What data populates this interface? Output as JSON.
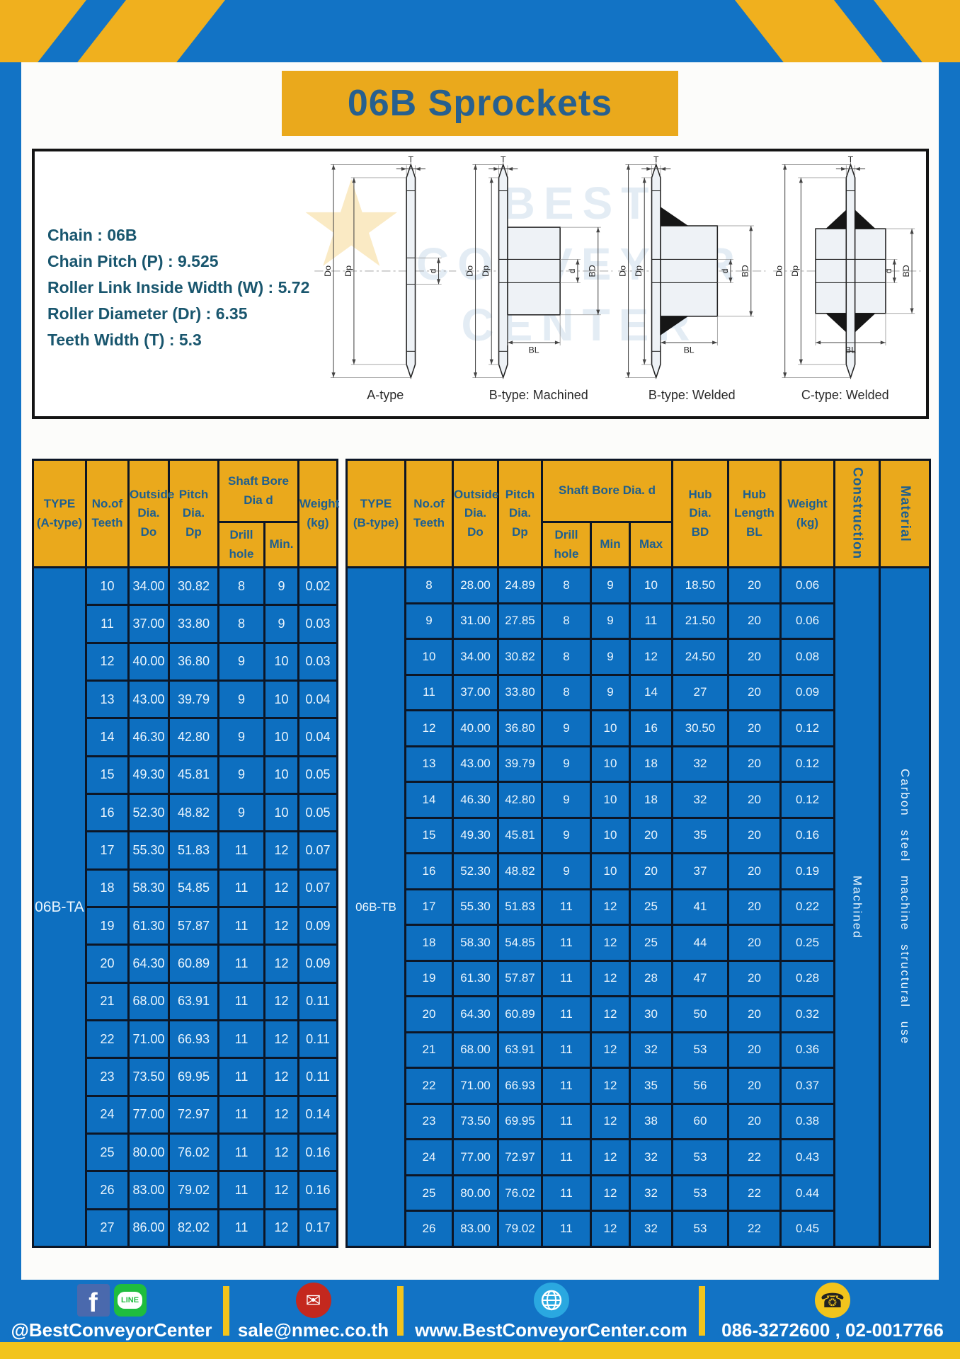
{
  "title": "06B Sprockets",
  "specs": [
    "Chain  :  06B",
    "Chain Pitch (P)  :  9.525",
    "Roller Link Inside Width (W)  :  5.72",
    "Roller Diameter (Dr)  :  6.35",
    "Teeth Width (T)  :  5.3"
  ],
  "diagram": {
    "watermark_lines": [
      "BEST",
      "CONVEYOR",
      "CENTER"
    ],
    "captions": [
      "A-type",
      "B-type: Machined",
      "B-type: Welded",
      "C-type: Welded"
    ],
    "dim_labels": {
      "t": "T",
      "do": "Do",
      "dp": "Dp",
      "d": "d",
      "bd": "BD",
      "bl": "BL"
    }
  },
  "table_a": {
    "header": {
      "type": "TYPE\n(A-type)",
      "teeth": "No.of\nTeeth",
      "outside": "Outside\nDia.\nDo",
      "pitch": "Pitch Dia.\nDp",
      "shaft_bore": "Shaft Bore Dia d",
      "drill": "Drill hole",
      "min": "Min.",
      "weight": "Weight\n(kg)"
    },
    "type_label": "06B-TA",
    "rows": [
      [
        "10",
        "34.00",
        "30.82",
        "8",
        "9",
        "0.02"
      ],
      [
        "11",
        "37.00",
        "33.80",
        "8",
        "9",
        "0.03"
      ],
      [
        "12",
        "40.00",
        "36.80",
        "9",
        "10",
        "0.03"
      ],
      [
        "13",
        "43.00",
        "39.79",
        "9",
        "10",
        "0.04"
      ],
      [
        "14",
        "46.30",
        "42.80",
        "9",
        "10",
        "0.04"
      ],
      [
        "15",
        "49.30",
        "45.81",
        "9",
        "10",
        "0.05"
      ],
      [
        "16",
        "52.30",
        "48.82",
        "9",
        "10",
        "0.05"
      ],
      [
        "17",
        "55.30",
        "51.83",
        "11",
        "12",
        "0.07"
      ],
      [
        "18",
        "58.30",
        "54.85",
        "11",
        "12",
        "0.07"
      ],
      [
        "19",
        "61.30",
        "57.87",
        "11",
        "12",
        "0.09"
      ],
      [
        "20",
        "64.30",
        "60.89",
        "11",
        "12",
        "0.09"
      ],
      [
        "21",
        "68.00",
        "63.91",
        "11",
        "12",
        "0.11"
      ],
      [
        "22",
        "71.00",
        "66.93",
        "11",
        "12",
        "0.11"
      ],
      [
        "23",
        "73.50",
        "69.95",
        "11",
        "12",
        "0.11"
      ],
      [
        "24",
        "77.00",
        "72.97",
        "11",
        "12",
        "0.14"
      ],
      [
        "25",
        "80.00",
        "76.02",
        "11",
        "12",
        "0.16"
      ],
      [
        "26",
        "83.00",
        "79.02",
        "11",
        "12",
        "0.16"
      ],
      [
        "27",
        "86.00",
        "82.02",
        "11",
        "12",
        "0.17"
      ]
    ]
  },
  "table_b": {
    "header": {
      "type": "TYPE\n(B-type)",
      "teeth": "No.of\nTeeth",
      "outside": "Outside\nDia.\nDo",
      "pitch": "Pitch\nDia.\nDp",
      "shaft_bore": "Shaft Bore Dia.  d",
      "drill": "Drill hole",
      "min": "Min",
      "max": "Max",
      "hub_dia": "Hub\nDia.\nBD",
      "hub_len": "Hub\nLength\nBL",
      "weight": "Weight\n(kg)",
      "construction": "Construction",
      "material": "Material"
    },
    "type_label": "06B-TB",
    "construction": "Machined",
    "material": "Carbon steel machine structural use",
    "rows": [
      [
        "8",
        "28.00",
        "24.89",
        "8",
        "9",
        "10",
        "18.50",
        "20",
        "0.06"
      ],
      [
        "9",
        "31.00",
        "27.85",
        "8",
        "9",
        "11",
        "21.50",
        "20",
        "0.06"
      ],
      [
        "10",
        "34.00",
        "30.82",
        "8",
        "9",
        "12",
        "24.50",
        "20",
        "0.08"
      ],
      [
        "11",
        "37.00",
        "33.80",
        "8",
        "9",
        "14",
        "27",
        "20",
        "0.09"
      ],
      [
        "12",
        "40.00",
        "36.80",
        "9",
        "10",
        "16",
        "30.50",
        "20",
        "0.12"
      ],
      [
        "13",
        "43.00",
        "39.79",
        "9",
        "10",
        "18",
        "32",
        "20",
        "0.12"
      ],
      [
        "14",
        "46.30",
        "42.80",
        "9",
        "10",
        "18",
        "32",
        "20",
        "0.12"
      ],
      [
        "15",
        "49.30",
        "45.81",
        "9",
        "10",
        "20",
        "35",
        "20",
        "0.16"
      ],
      [
        "16",
        "52.30",
        "48.82",
        "9",
        "10",
        "20",
        "37",
        "20",
        "0.19"
      ],
      [
        "17",
        "55.30",
        "51.83",
        "11",
        "12",
        "25",
        "41",
        "20",
        "0.22"
      ],
      [
        "18",
        "58.30",
        "54.85",
        "11",
        "12",
        "25",
        "44",
        "20",
        "0.25"
      ],
      [
        "19",
        "61.30",
        "57.87",
        "11",
        "12",
        "28",
        "47",
        "20",
        "0.28"
      ],
      [
        "20",
        "64.30",
        "60.89",
        "11",
        "12",
        "30",
        "50",
        "20",
        "0.32"
      ],
      [
        "21",
        "68.00",
        "63.91",
        "11",
        "12",
        "32",
        "53",
        "20",
        "0.36"
      ],
      [
        "22",
        "71.00",
        "66.93",
        "11",
        "12",
        "35",
        "56",
        "20",
        "0.37"
      ],
      [
        "23",
        "73.50",
        "69.95",
        "11",
        "12",
        "38",
        "60",
        "20",
        "0.38"
      ],
      [
        "24",
        "77.00",
        "72.97",
        "11",
        "12",
        "32",
        "53",
        "22",
        "0.43"
      ],
      [
        "25",
        "80.00",
        "76.02",
        "11",
        "12",
        "32",
        "53",
        "22",
        "0.44"
      ],
      [
        "26",
        "83.00",
        "79.02",
        "11",
        "12",
        "32",
        "53",
        "22",
        "0.45"
      ]
    ]
  },
  "footer": {
    "social_label": "@BestConveyorCenter",
    "line_text": "LINE",
    "facebook_letter": "f",
    "mail_glyph": "✉",
    "phone_glyph": "☎",
    "email": "sale@nmec.co.th",
    "website": "www.BestConveyorCenter.com",
    "phone": "086-3272600 , 02-0017766"
  },
  "colors": {
    "page_blue": "#1273c5",
    "table_blue": "#0d6fc0",
    "accent_yellow": "#eaa91c",
    "stripe_yellow": "#f0b01e",
    "header_text_blue": "#1d5f90",
    "spec_text_teal": "#19566e"
  }
}
